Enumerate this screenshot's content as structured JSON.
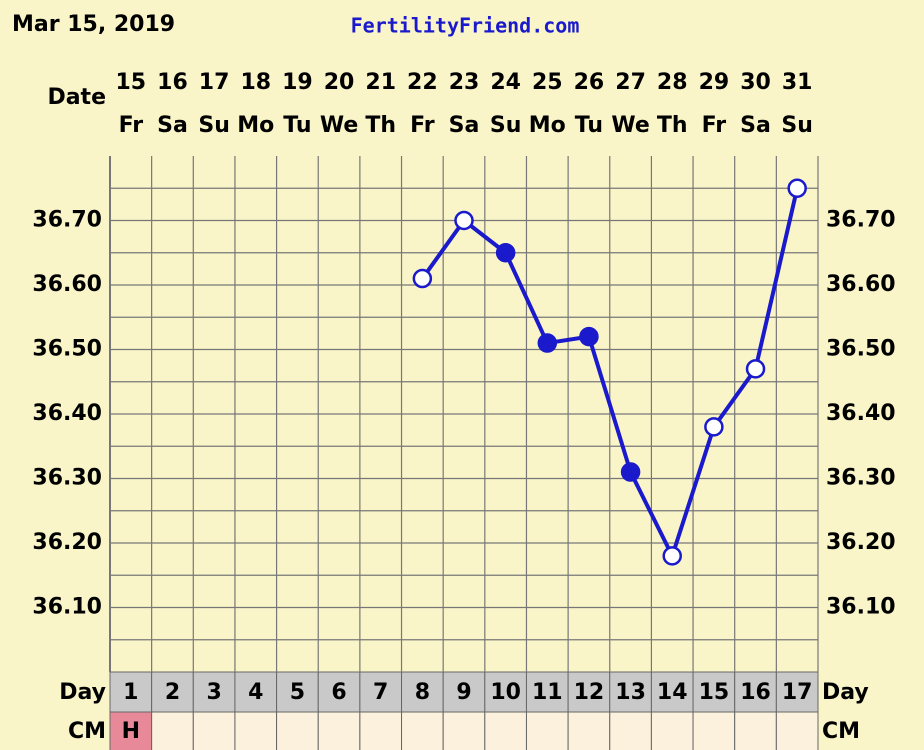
{
  "chart_data": {
    "type": "line",
    "title": "Mar 15, 2019",
    "site": "FertilityFriend.com",
    "date_label": "Date",
    "day_label": "Day",
    "cm_label": "CM",
    "dates": [
      15,
      16,
      17,
      18,
      19,
      20,
      21,
      22,
      23,
      24,
      25,
      26,
      27,
      28,
      29,
      30,
      31
    ],
    "weekdays": [
      "Fr",
      "Sa",
      "Su",
      "Mo",
      "Tu",
      "We",
      "Th",
      "Fr",
      "Sa",
      "Su",
      "Mo",
      "Tu",
      "We",
      "Th",
      "Fr",
      "Sa",
      "Su"
    ],
    "days": [
      1,
      2,
      3,
      4,
      5,
      6,
      7,
      8,
      9,
      10,
      11,
      12,
      13,
      14,
      15,
      16,
      17
    ],
    "values": [
      null,
      null,
      null,
      null,
      null,
      null,
      null,
      36.61,
      36.7,
      36.65,
      36.51,
      36.52,
      36.31,
      36.18,
      36.38,
      36.47,
      36.75
    ],
    "filled": [
      null,
      null,
      null,
      null,
      null,
      null,
      null,
      false,
      false,
      true,
      true,
      true,
      true,
      false,
      false,
      false,
      false
    ],
    "cm": [
      "H",
      null,
      null,
      null,
      null,
      null,
      null,
      null,
      null,
      null,
      null,
      null,
      null,
      null,
      null,
      null,
      null
    ],
    "cm_color": "#e8899a",
    "color": "#1a1acc",
    "ylim": [
      36.0,
      36.8
    ],
    "yticks": [
      {
        "value": 36.1,
        "label": "36.10"
      },
      {
        "value": 36.2,
        "label": "36.20"
      },
      {
        "value": 36.3,
        "label": "36.30"
      },
      {
        "value": 36.4,
        "label": "36.40"
      },
      {
        "value": 36.5,
        "label": "36.50"
      },
      {
        "value": 36.6,
        "label": "36.60"
      },
      {
        "value": 36.7,
        "label": "36.70"
      }
    ],
    "grid_lines": [
      36.05,
      36.1,
      36.15,
      36.2,
      36.25,
      36.3,
      36.35,
      36.4,
      36.45,
      36.5,
      36.55,
      36.6,
      36.65,
      36.7,
      36.75
    ],
    "grid": true
  }
}
